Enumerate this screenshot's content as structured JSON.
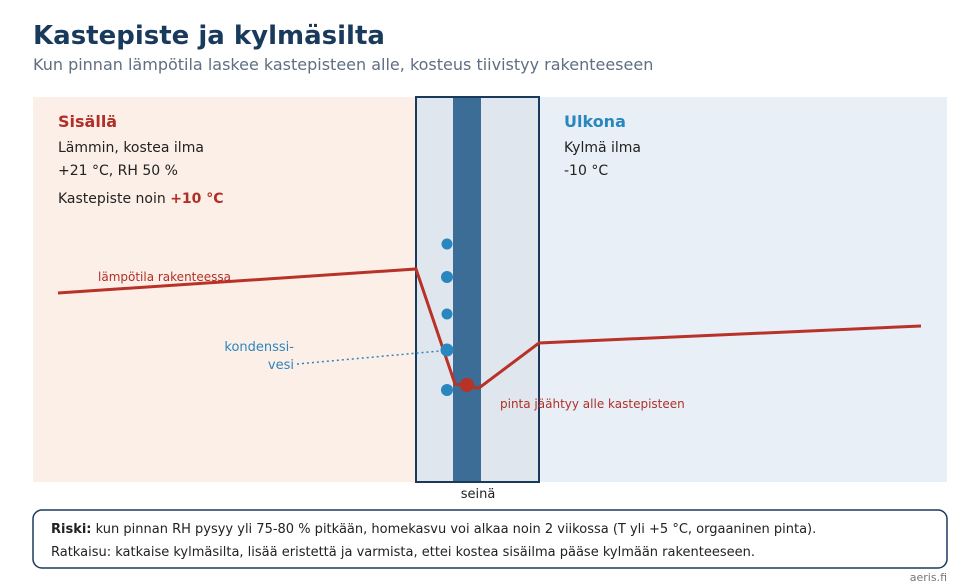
{
  "header": {
    "title": "Kastepiste ja kylmäsilta",
    "subtitle": "Kun pinnan lämpötila laskee kastepisteen alle, kosteus tiivistyy rakenteeseen"
  },
  "inside": {
    "heading": "Sisällä",
    "lines": [
      "Lämmin, kostea ilma",
      "+21 °C, RH 50 %"
    ],
    "dew_point_prefix": "Kastepiste noin ",
    "dew_point_value": "+10 °C"
  },
  "outside": {
    "heading": "Ulkona",
    "lines": [
      "Kylmä ilma",
      "-10 °C"
    ]
  },
  "labels": {
    "temperature": "lämpötila rakenteessa",
    "condensation": [
      "kondenssi-",
      "vesi"
    ],
    "surface": "pinta jäähtyy alle kastepisteen",
    "wall": "seinä"
  },
  "note": {
    "risk_label": "Riski:",
    "risk_text": " kun pinnan RH pysyy yli 75-80 % pitkään, homekasvu voi alkaa noin 2 viikossa (T yli +5 °C, orgaaninen pinta).",
    "solution": "Ratkaisu: katkaise kylmäsilta, lisää eristettä ja varmista, ettei kostea sisäilma pääse kylmään rakenteeseen."
  },
  "footer": "aeris.fi"
}
